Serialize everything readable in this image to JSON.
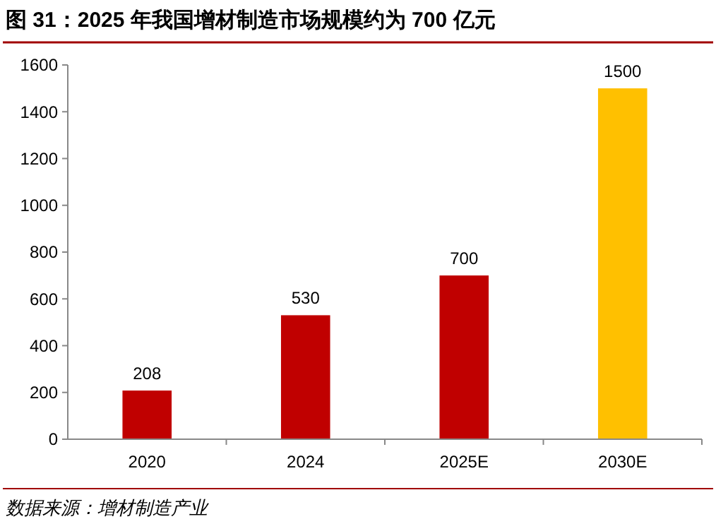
{
  "chart_data": {
    "type": "bar",
    "title": "图 31：2025 年我国增材制造市场规模约为 700 亿元",
    "categories": [
      "2020",
      "2024",
      "2025E",
      "2030E"
    ],
    "values": [
      208,
      530,
      700,
      1500
    ],
    "colors": [
      "#c00000",
      "#c00000",
      "#c00000",
      "#ffc000"
    ],
    "ylim": [
      0,
      1600
    ],
    "yticks": [
      0,
      200,
      400,
      600,
      800,
      1000,
      1200,
      1400,
      1600
    ],
    "grid": false,
    "data_labels": true,
    "annotations": [
      "数据来源：增材制造产业"
    ]
  }
}
